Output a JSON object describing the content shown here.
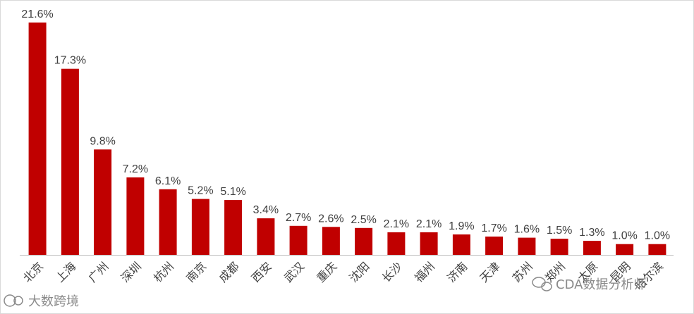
{
  "chart_data": {
    "type": "bar",
    "categories": [
      "北京",
      "上海",
      "广州",
      "深圳",
      "杭州",
      "南京",
      "成都",
      "西安",
      "武汉",
      "重庆",
      "沈阳",
      "长沙",
      "福州",
      "济南",
      "天津",
      "苏州",
      "郑州",
      "太原",
      "昆明",
      "哈尔滨"
    ],
    "values": [
      21.6,
      17.3,
      9.8,
      7.2,
      6.1,
      5.2,
      5.1,
      3.4,
      2.7,
      2.6,
      2.5,
      2.1,
      2.1,
      1.9,
      1.7,
      1.6,
      1.5,
      1.3,
      1.0,
      1.0
    ],
    "data_labels": [
      "21.6%",
      "17.3%",
      "9.8%",
      "7.2%",
      "6.1%",
      "5.2%",
      "5.1%",
      "3.4%",
      "2.7%",
      "2.6%",
      "2.5%",
      "2.1%",
      "2.1%",
      "1.9%",
      "1.7%",
      "1.6%",
      "1.5%",
      "1.3%",
      "1.0%",
      "1.0%"
    ],
    "value_unit": "%",
    "ylim": [
      0,
      22
    ],
    "grid": false,
    "legend": "none",
    "bar_color": "#c00000"
  },
  "watermarks": {
    "bottom_left": "大数跨境",
    "bottom_right": "CDA数据分析师"
  }
}
